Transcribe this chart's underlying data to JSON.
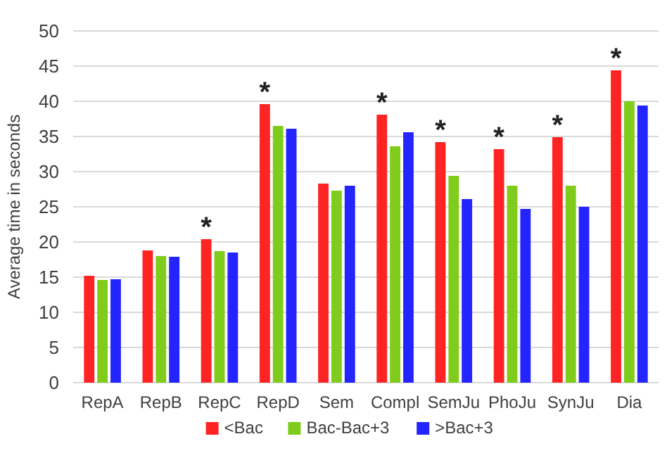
{
  "chart_data": {
    "type": "bar",
    "ylabel": "Average time in seconds",
    "categories": [
      "RepA",
      "RepB",
      "RepC",
      "RepD",
      "Sem",
      "Compl",
      "SemJu",
      "PhoJu",
      "SynJu",
      "Dia"
    ],
    "series": [
      {
        "name": "<Bac",
        "color": "#ff2424",
        "values": [
          15.2,
          18.8,
          20.4,
          39.6,
          28.3,
          38.1,
          34.2,
          33.2,
          34.9,
          44.4
        ],
        "value_labels": [
          null,
          null,
          "*",
          "*",
          null,
          "*",
          "*",
          "*",
          "*",
          "*"
        ]
      },
      {
        "name": "Bac-Bac+3",
        "color": "#80cc1c",
        "values": [
          14.6,
          18.0,
          18.7,
          36.5,
          27.3,
          33.6,
          29.4,
          28.0,
          28.0,
          40.0
        ]
      },
      {
        "name": ">Bac+3",
        "color": "#2424ff",
        "values": [
          14.7,
          17.9,
          18.5,
          36.1,
          28.0,
          35.6,
          26.1,
          24.7,
          25.0,
          39.4
        ]
      }
    ],
    "ylim": [
      0,
      50
    ],
    "yticks": [
      0,
      5,
      10,
      15,
      20,
      25,
      30,
      35,
      40,
      45,
      50
    ],
    "grid": "y",
    "legend": "bottom"
  }
}
